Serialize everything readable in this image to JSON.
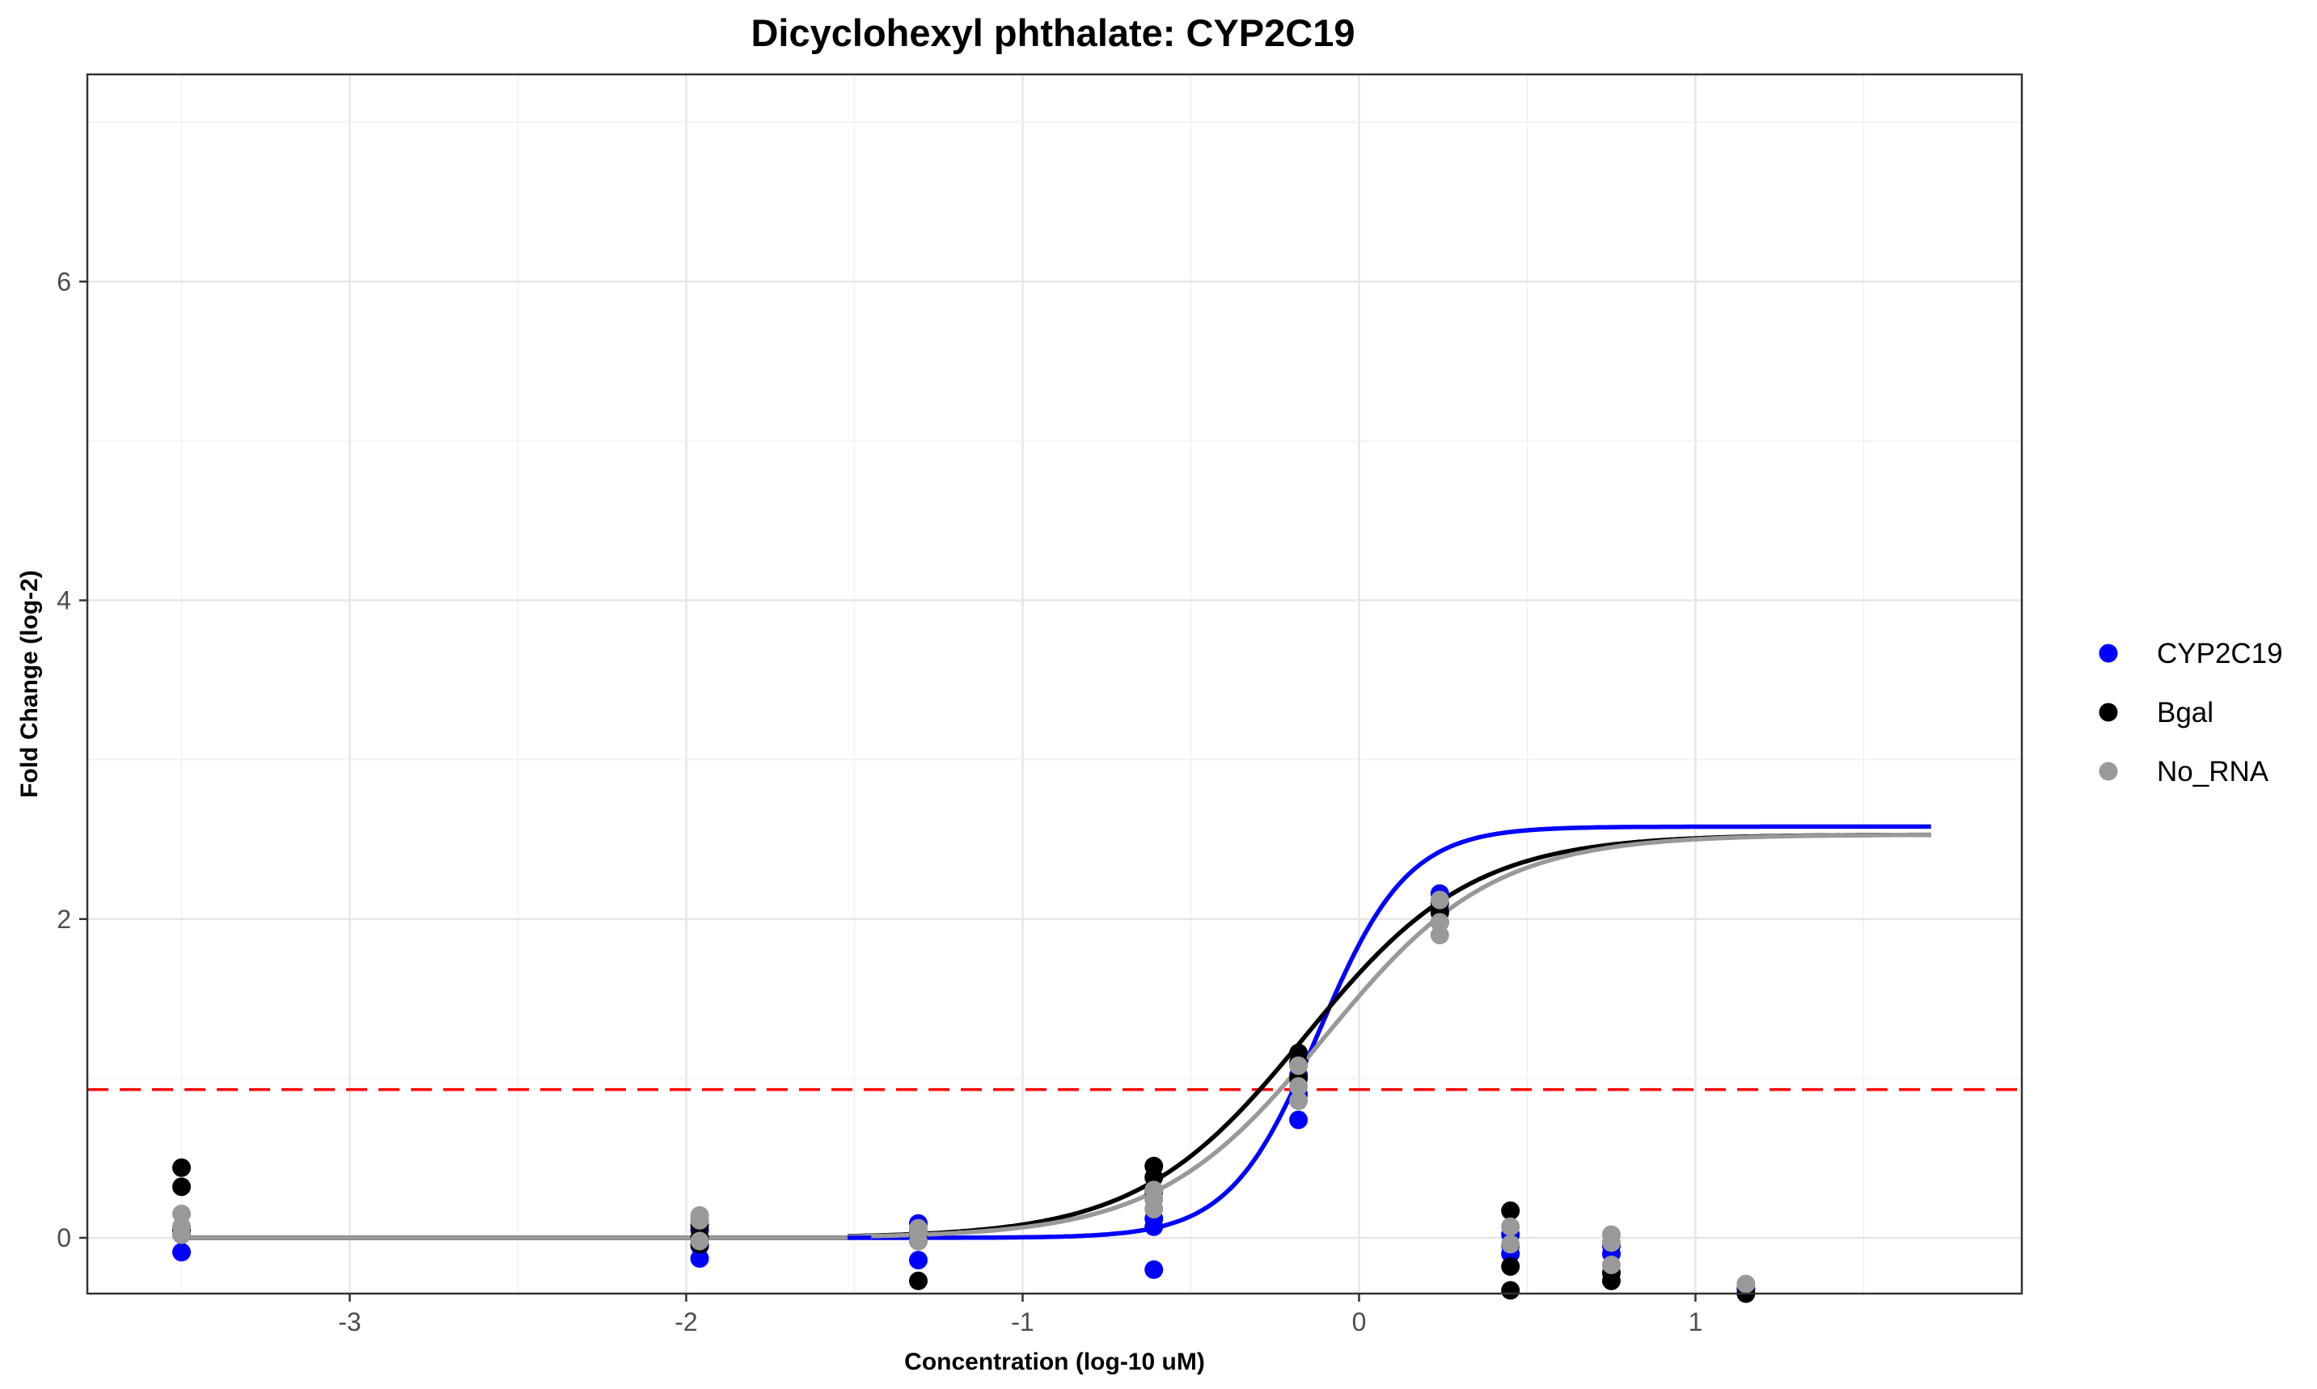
{
  "chart_data": {
    "type": "scatter",
    "title": "Dicyclohexyl phthalate: CYP2C19",
    "xlabel": "Concentration (log-10 uM)",
    "ylabel": "Fold Change (log-2)",
    "xlim": [
      -3.78,
      1.97
    ],
    "ylim": [
      -0.35,
      7.3
    ],
    "x_ticks": [
      -3,
      -2,
      -1,
      0,
      1
    ],
    "y_ticks": [
      0,
      2,
      4,
      6
    ],
    "grid": true,
    "legend_position": "right",
    "threshold": {
      "y": 0.93,
      "color": "#ff0000",
      "style": "dashed"
    },
    "series": [
      {
        "name": "CYP2C19",
        "color": "#0000ff",
        "points": [
          {
            "x": -3.5,
            "y": -0.09
          },
          {
            "x": -3.5,
            "y": 0.02
          },
          {
            "x": -3.5,
            "y": 0.05
          },
          {
            "x": -1.96,
            "y": -0.13
          },
          {
            "x": -1.96,
            "y": -0.05
          },
          {
            "x": -1.96,
            "y": 0.05
          },
          {
            "x": -1.31,
            "y": 0.09
          },
          {
            "x": -1.31,
            "y": -0.14
          },
          {
            "x": -1.31,
            "y": 0.01
          },
          {
            "x": -0.61,
            "y": -0.2
          },
          {
            "x": -0.61,
            "y": 0.07
          },
          {
            "x": -0.61,
            "y": 0.12
          },
          {
            "x": -0.18,
            "y": 0.74
          },
          {
            "x": -0.18,
            "y": 0.9
          },
          {
            "x": -0.18,
            "y": 1.02
          },
          {
            "x": 0.24,
            "y": 2.16
          },
          {
            "x": 0.24,
            "y": 2.05
          },
          {
            "x": 0.24,
            "y": 1.98
          },
          {
            "x": 0.45,
            "y": -0.05
          },
          {
            "x": 0.45,
            "y": 0.02
          },
          {
            "x": 0.45,
            "y": -0.1
          },
          {
            "x": 0.75,
            "y": -0.1
          },
          {
            "x": 0.75,
            "y": -0.22
          },
          {
            "x": 0.75,
            "y": -0.05
          },
          {
            "x": 1.15,
            "y": -0.32
          }
        ],
        "curve": {
          "bottom": 0,
          "top": 2.58,
          "ec50": -0.12,
          "hill": 3.3,
          "xmin": -1.45,
          "xmax": 1.7
        }
      },
      {
        "name": "Bgal",
        "color": "#000000",
        "points": [
          {
            "x": -3.5,
            "y": 0.44
          },
          {
            "x": -3.5,
            "y": 0.32
          },
          {
            "x": -3.5,
            "y": 0.05
          },
          {
            "x": -1.96,
            "y": 0.08
          },
          {
            "x": -1.96,
            "y": -0.04
          },
          {
            "x": -1.96,
            "y": 0.0
          },
          {
            "x": -1.31,
            "y": -0.27
          },
          {
            "x": -1.31,
            "y": -0.02
          },
          {
            "x": -1.31,
            "y": 0.04
          },
          {
            "x": -0.61,
            "y": 0.45
          },
          {
            "x": -0.61,
            "y": 0.38
          },
          {
            "x": -0.61,
            "y": 0.29
          },
          {
            "x": -0.18,
            "y": 1.16
          },
          {
            "x": -0.18,
            "y": 1.1
          },
          {
            "x": -0.18,
            "y": 1.0
          },
          {
            "x": 0.24,
            "y": 2.1
          },
          {
            "x": 0.24,
            "y": 2.04
          },
          {
            "x": 0.45,
            "y": 0.17
          },
          {
            "x": 0.45,
            "y": -0.18
          },
          {
            "x": 0.45,
            "y": -0.33
          },
          {
            "x": 0.75,
            "y": -0.22
          },
          {
            "x": 0.75,
            "y": -0.27
          },
          {
            "x": 1.15,
            "y": -0.35
          }
        ],
        "curve": {
          "bottom": 0,
          "top": 2.53,
          "ec50": -0.16,
          "hill": 1.75,
          "xmin": -1.52,
          "xmax": 1.7
        }
      },
      {
        "name": "No_RNA",
        "color": "#999999",
        "points": [
          {
            "x": -3.5,
            "y": 0.15
          },
          {
            "x": -3.5,
            "y": 0.07
          },
          {
            "x": -3.5,
            "y": 0.02
          },
          {
            "x": -1.96,
            "y": 0.14
          },
          {
            "x": -1.96,
            "y": 0.11
          },
          {
            "x": -1.96,
            "y": -0.02
          },
          {
            "x": -1.31,
            "y": 0.03
          },
          {
            "x": -1.31,
            "y": 0.06
          },
          {
            "x": -1.31,
            "y": -0.02
          },
          {
            "x": -0.61,
            "y": 0.3
          },
          {
            "x": -0.61,
            "y": 0.24
          },
          {
            "x": -0.61,
            "y": 0.18
          },
          {
            "x": -0.18,
            "y": 1.08
          },
          {
            "x": -0.18,
            "y": 0.95
          },
          {
            "x": -0.18,
            "y": 0.86
          },
          {
            "x": 0.24,
            "y": 2.12
          },
          {
            "x": 0.24,
            "y": 1.98
          },
          {
            "x": 0.24,
            "y": 1.9
          },
          {
            "x": 0.45,
            "y": 0.07
          },
          {
            "x": 0.45,
            "y": -0.04
          },
          {
            "x": 0.75,
            "y": 0.02
          },
          {
            "x": 0.75,
            "y": -0.03
          },
          {
            "x": 0.75,
            "y": -0.17
          },
          {
            "x": 1.15,
            "y": -0.29
          }
        ],
        "curve": {
          "bottom": 0,
          "top": 2.53,
          "ec50": -0.1,
          "hill": 1.75,
          "xmin": -1.52,
          "xmax": 1.7
        }
      }
    ]
  }
}
